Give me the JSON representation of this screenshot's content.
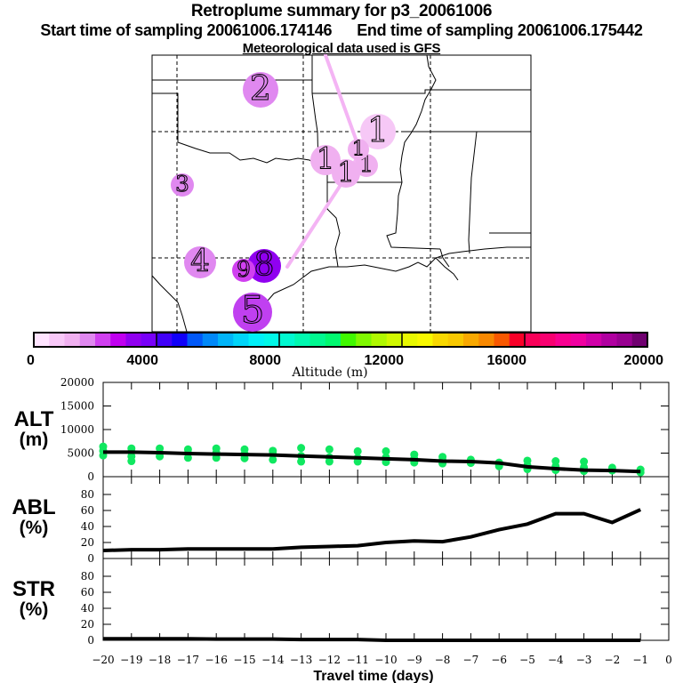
{
  "header": {
    "title": "Retroplume summary for p3_20061006",
    "start_label": "Start time of sampling 20061006.174146",
    "end_label": "End time of sampling 20061006.175442",
    "met_label": "Meteorological data used is GFS"
  },
  "map": {
    "path_color": "#f4b4f4",
    "markers": [
      {
        "label": "1",
        "color": "#f6c8f6"
      },
      {
        "label": "1",
        "color": "#f0b0f0"
      },
      {
        "label": "1",
        "color": "#f0b0f0"
      },
      {
        "label": "1",
        "color": "#f0b0f0"
      },
      {
        "label": "1",
        "color": "#f0b0f0"
      },
      {
        "label": "2",
        "color": "#e088f0"
      },
      {
        "label": "3",
        "color": "#e088f0"
      },
      {
        "label": "4",
        "color": "#e088f0"
      },
      {
        "label": "5",
        "color": "#c040f0"
      },
      {
        "label": "8",
        "color": "#9000f0"
      },
      {
        "label": "9",
        "color": "#d040f0"
      }
    ]
  },
  "colorbar": {
    "title": "Altitude (m)",
    "min": 0,
    "max": 20000,
    "step": 500,
    "tick_labels": [
      "0",
      "4000",
      "8000",
      "12000",
      "16000",
      "20000"
    ],
    "colors": [
      "#ffe4ff",
      "#f8c8f8",
      "#f0b0f0",
      "#e088f0",
      "#d040f0",
      "#c000f0",
      "#9000f0",
      "#7800f8",
      "#4000f8",
      "#1000f8",
      "#0058f8",
      "#0088f8",
      "#00b4f8",
      "#00d4f8",
      "#00f0f8",
      "#00f8e8",
      "#00f8d0",
      "#00f8b0",
      "#00f890",
      "#00f870",
      "#40f800",
      "#80f800",
      "#b0f800",
      "#d0f800",
      "#e8f800",
      "#f8f800",
      "#f8d800",
      "#f8c800",
      "#f8a800",
      "#f88800",
      "#f85800",
      "#f80028",
      "#f80058",
      "#f80070",
      "#f80090",
      "#f000a0",
      "#d000a8",
      "#b000a0",
      "#980090",
      "#700070"
    ]
  },
  "chart_data": [
    {
      "type": "line",
      "name": "ALT",
      "ylabel": "ALT\n(m)",
      "ylabel_lines": [
        "ALT",
        "(m)"
      ],
      "ylim": [
        0,
        20000
      ],
      "yticks": [
        0,
        5000,
        10000,
        15000,
        20000
      ],
      "ytick_labels": [
        "0",
        "5000",
        "10000",
        "15000",
        "20000"
      ],
      "xlim": [
        -20,
        0
      ],
      "x": [
        -20,
        -19,
        -18,
        -17,
        -16,
        -15,
        -14,
        -13,
        -12,
        -11,
        -10,
        -9,
        -8,
        -7,
        -6,
        -5,
        -4,
        -3,
        -2,
        -1
      ],
      "series": [
        {
          "name": "mean altitude",
          "color": "#000000",
          "values": [
            5200,
            5200,
            5100,
            4900,
            4800,
            4700,
            4600,
            4400,
            4200,
            4000,
            3800,
            3600,
            3300,
            3200,
            2900,
            2100,
            1700,
            1400,
            1300,
            1100
          ]
        }
      ],
      "scatter": {
        "name": "particle altitudes",
        "color": "#10e860",
        "points": [
          [
            -20,
            6400
          ],
          [
            -20,
            5500
          ],
          [
            -20,
            4500
          ],
          [
            -19,
            6000
          ],
          [
            -19,
            5200
          ],
          [
            -19,
            4300
          ],
          [
            -19,
            3300
          ],
          [
            -18,
            6000
          ],
          [
            -18,
            5000
          ],
          [
            -18,
            4300
          ],
          [
            -17,
            5800
          ],
          [
            -17,
            5000
          ],
          [
            -17,
            4000
          ],
          [
            -16,
            6000
          ],
          [
            -16,
            5100
          ],
          [
            -16,
            4000
          ],
          [
            -15,
            5800
          ],
          [
            -15,
            4800
          ],
          [
            -15,
            3900
          ],
          [
            -14,
            5500
          ],
          [
            -14,
            4800
          ],
          [
            -14,
            3600
          ],
          [
            -13,
            6100
          ],
          [
            -13,
            4400
          ],
          [
            -13,
            3200
          ],
          [
            -12,
            5800
          ],
          [
            -12,
            4100
          ],
          [
            -12,
            3200
          ],
          [
            -11,
            5400
          ],
          [
            -11,
            4000
          ],
          [
            -11,
            3200
          ],
          [
            -10,
            5400
          ],
          [
            -10,
            4100
          ],
          [
            -10,
            3100
          ],
          [
            -9,
            4700
          ],
          [
            -9,
            3800
          ],
          [
            -9,
            3000
          ],
          [
            -8,
            4200
          ],
          [
            -8,
            3500
          ],
          [
            -8,
            2800
          ],
          [
            -7,
            3600
          ],
          [
            -7,
            2900
          ],
          [
            -6,
            3000
          ],
          [
            -6,
            2600
          ],
          [
            -6,
            2200
          ],
          [
            -5,
            3400
          ],
          [
            -5,
            2400
          ],
          [
            -5,
            1600
          ],
          [
            -4,
            3300
          ],
          [
            -4,
            2200
          ],
          [
            -4,
            1400
          ],
          [
            -3,
            3200
          ],
          [
            -3,
            2000
          ],
          [
            -3,
            1200
          ],
          [
            -2,
            1900
          ],
          [
            -2,
            1300
          ],
          [
            -1,
            1500
          ],
          [
            -1,
            900
          ]
        ]
      }
    },
    {
      "type": "line",
      "name": "ABL",
      "ylabel_lines": [
        "ABL",
        "(%)"
      ],
      "ylim": [
        0,
        100
      ],
      "yticks": [
        0,
        20,
        40,
        60,
        80
      ],
      "ytick_labels": [
        "0",
        "20",
        "40",
        "60",
        "80"
      ],
      "xlim": [
        -20,
        0
      ],
      "x": [
        -20,
        -19,
        -18,
        -17,
        -16,
        -15,
        -14,
        -13,
        -12,
        -11,
        -10,
        -9,
        -8,
        -7,
        -6,
        -5,
        -4,
        -3,
        -2,
        -1
      ],
      "series": [
        {
          "name": "ABL fraction",
          "color": "#000000",
          "values": [
            10,
            11,
            11,
            12,
            12,
            12,
            12,
            14,
            15,
            16,
            20,
            22,
            21,
            27,
            36,
            43,
            56,
            56,
            45,
            61
          ]
        }
      ]
    },
    {
      "type": "line",
      "name": "STR",
      "ylabel_lines": [
        "STR",
        "(%)"
      ],
      "ylim": [
        0,
        100
      ],
      "yticks": [
        0,
        20,
        40,
        60,
        80
      ],
      "ytick_labels": [
        "0",
        "20",
        "40",
        "60",
        "80"
      ],
      "xlim": [
        -20,
        0
      ],
      "x": [
        -20,
        -19,
        -18,
        -17,
        -16,
        -15,
        -14,
        -13,
        -12,
        -11,
        -10,
        -9,
        -8,
        -7,
        -6,
        -5,
        -4,
        -3,
        -2,
        -1
      ],
      "series": [
        {
          "name": "STR fraction",
          "color": "#000000",
          "values": [
            2,
            2,
            2,
            2,
            1.5,
            1.5,
            1.5,
            1,
            1,
            1,
            0,
            0,
            0,
            0,
            0,
            0,
            0,
            0,
            0,
            0
          ]
        }
      ]
    }
  ],
  "x_axis": {
    "title": "Travel time (days)",
    "tick_labels": [
      "−20",
      "−19",
      "−18",
      "−17",
      "−16",
      "−15",
      "−14",
      "−13",
      "−12",
      "−11",
      "−10",
      "−9",
      "−8",
      "−7",
      "−6",
      "−5",
      "−4",
      "−3",
      "−2",
      "−1",
      "0"
    ]
  }
}
